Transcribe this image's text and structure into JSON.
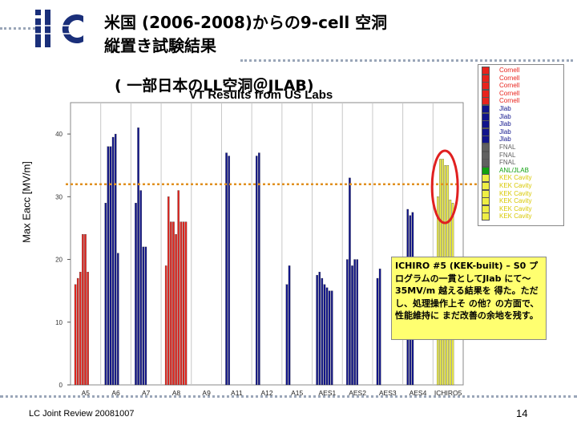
{
  "header": {
    "title_line1": "米国 (2006-2008)からの9-cell 空洞",
    "title_line2": "縦置き試験結果",
    "subtitle": "( 一部日本のLL空洞＠JLAB)"
  },
  "logo": {
    "text": "ilc"
  },
  "note": {
    "text": "ICHIRO #5 (KEK-built) – S0 プログラムの一貫としてJlab にて～35MV/m 越える結果を 得た。ただし、処理操作上そ の他？の方面で、性能維持に まだ改善の余地を残す。"
  },
  "footer": {
    "left": "LC Joint Review 20081007",
    "page": "14"
  },
  "colors": {
    "Cornell": "#e8231c",
    "Jlab": "#10148c",
    "FNAL": "#606060",
    "ANL/JLAB": "#10a010",
    "KEK Cavity": "#eeee44",
    "highlight": "#e02020",
    "threshold": "#e09020"
  },
  "legend": [
    {
      "label": "Cornell",
      "color": "#e8231c"
    },
    {
      "label": "Cornell",
      "color": "#e8231c"
    },
    {
      "label": "Cornell",
      "color": "#e8231c"
    },
    {
      "label": "Cornell",
      "color": "#e8231c"
    },
    {
      "label": "Cornell",
      "color": "#e8231c"
    },
    {
      "label": "Jlab",
      "color": "#10148c"
    },
    {
      "label": "Jlab",
      "color": "#10148c"
    },
    {
      "label": "Jlab",
      "color": "#10148c"
    },
    {
      "label": "Jlab",
      "color": "#10148c"
    },
    {
      "label": "Jlab",
      "color": "#10148c"
    },
    {
      "label": "FNAL",
      "color": "#606060"
    },
    {
      "label": "FNAL",
      "color": "#606060"
    },
    {
      "label": "FNAL",
      "color": "#606060"
    },
    {
      "label": "ANL/JLAB",
      "color": "#10a010"
    },
    {
      "label": "KEK Cavity",
      "color": "#eeee44"
    },
    {
      "label": "KEK Cavity",
      "color": "#eeee44"
    },
    {
      "label": "KEK Cavity",
      "color": "#eeee44"
    },
    {
      "label": "KEK Cavity",
      "color": "#eeee44"
    },
    {
      "label": "KEK Cavity",
      "color": "#eeee44"
    },
    {
      "label": "KEK Cavity",
      "color": "#eeee44"
    }
  ],
  "chart_data": {
    "type": "bar",
    "title": "VT Results from US Labs",
    "ylabel": "Max Eacc [MV/m]",
    "xlabel": "",
    "ylim": [
      0,
      45
    ],
    "yticks": [
      0,
      10,
      20,
      30,
      40
    ],
    "grid": "vertical",
    "legend_position": "right",
    "threshold_line": 32,
    "categories": [
      "A5",
      "A6",
      "A7",
      "A8",
      "A9",
      "A11",
      "A12",
      "A15",
      "AES1",
      "AES2",
      "AES3",
      "AES4",
      "ICHIRO5"
    ],
    "groups": [
      {
        "category": "A5",
        "lab": "Cornell",
        "values": [
          16,
          17,
          18,
          24,
          24,
          18
        ]
      },
      {
        "category": "A6",
        "lab": "Jlab",
        "values": [
          29,
          38,
          38,
          39.5,
          40,
          21
        ]
      },
      {
        "category": "A7",
        "lab": "Jlab",
        "values": [
          29,
          41,
          31,
          22,
          22
        ]
      },
      {
        "category": "A8",
        "lab": "Cornell",
        "values": [
          19,
          30,
          26,
          26,
          24,
          31,
          26,
          26,
          26
        ]
      },
      {
        "category": "A9",
        "lab": "Jlab",
        "values": []
      },
      {
        "category": "A11",
        "lab": "Jlab",
        "values": [
          37,
          36.5
        ]
      },
      {
        "category": "A12",
        "lab": "Jlab",
        "values": [
          36.5,
          37
        ]
      },
      {
        "category": "A15",
        "lab": "Jlab",
        "values": [
          16,
          19
        ]
      },
      {
        "category": "AES1",
        "lab": "Jlab",
        "values": [
          17.5,
          18,
          17,
          16,
          15.5,
          15,
          15
        ]
      },
      {
        "category": "AES2",
        "lab": "Jlab",
        "values": [
          20,
          33,
          19,
          20,
          20
        ]
      },
      {
        "category": "AES3",
        "lab": "Jlab",
        "values": [
          17,
          18.5
        ]
      },
      {
        "category": "AES4",
        "lab": "Jlab",
        "values": [
          28,
          27,
          27.5
        ]
      },
      {
        "category": "ICHIRO5",
        "lab": "KEK Cavity",
        "values": [
          30,
          36,
          36,
          35,
          35,
          29.5,
          29
        ]
      }
    ]
  }
}
